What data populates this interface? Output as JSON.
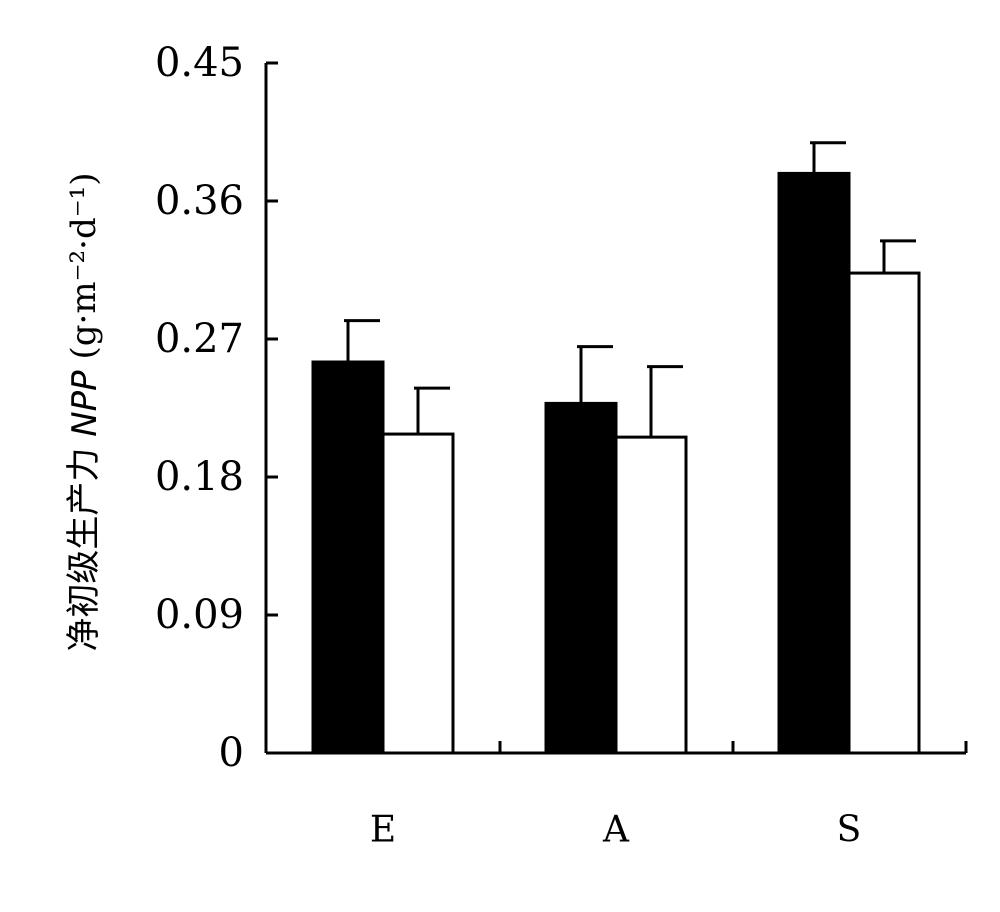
{
  "chart_data": {
    "type": "bar",
    "ylabel": {
      "prefix": "净初级生产力 ",
      "italic": "NPP",
      "unit": " (g·m⁻²·d⁻¹)"
    },
    "categories": [
      "E",
      "A",
      "S"
    ],
    "series": [
      {
        "color": "#000000",
        "values": [
          0.255,
          0.228,
          0.378
        ],
        "errors": [
          0.027,
          0.037,
          0.02
        ]
      },
      {
        "color": "#ffffff",
        "values": [
          0.208,
          0.206,
          0.313
        ],
        "errors": [
          0.03,
          0.046,
          0.021
        ]
      }
    ],
    "ylim": [
      0,
      0.45
    ],
    "yticks": [
      "0",
      "0.09",
      "0.18",
      "0.27",
      "0.36",
      "0.45"
    ],
    "ytick_values": [
      0,
      0.09,
      0.18,
      0.27,
      0.36,
      0.45
    ],
    "grid": false,
    "legend": "none"
  }
}
